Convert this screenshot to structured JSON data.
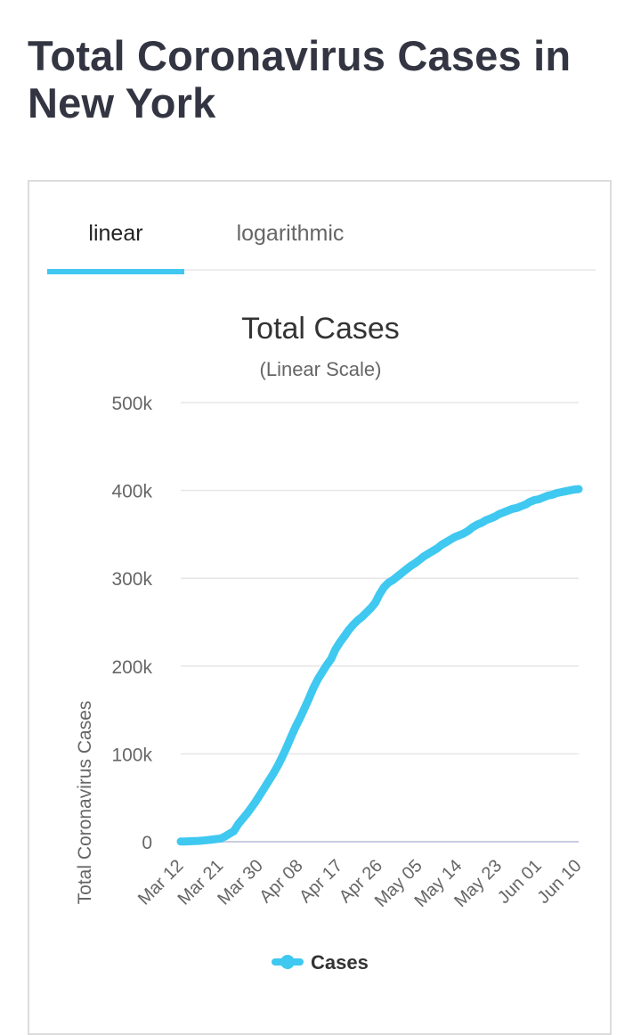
{
  "page": {
    "title": "Total Coronavirus Cases in New York"
  },
  "tabs": [
    {
      "label": "linear",
      "active": true
    },
    {
      "label": "logarithmic",
      "active": false
    }
  ],
  "colors": {
    "accent": "#3fc8f0",
    "title": "#333642",
    "grid": "#e6e6e6"
  },
  "chart_data": {
    "type": "line",
    "title": "Total Cases",
    "subtitle": "(Linear Scale)",
    "ylabel": "Total Coronavirus Cases",
    "xlabel": "",
    "ylim": [
      0,
      500000
    ],
    "y_ticks": [
      0,
      100000,
      200000,
      300000,
      400000,
      500000
    ],
    "y_tick_labels": [
      "0",
      "100k",
      "200k",
      "300k",
      "400k",
      "500k"
    ],
    "x_tick_labels": [
      "Mar 12",
      "Mar 21",
      "Mar 30",
      "Apr 08",
      "Apr 17",
      "Apr 26",
      "May 05",
      "May 14",
      "May 23",
      "Jun 01",
      "Jun 10"
    ],
    "legend": {
      "position": "bottom",
      "entries": [
        "Cases"
      ]
    },
    "grid": true,
    "series": [
      {
        "name": "Cases",
        "x": [
          "Mar 12",
          "Mar 13",
          "Mar 14",
          "Mar 15",
          "Mar 16",
          "Mar 17",
          "Mar 18",
          "Mar 19",
          "Mar 20",
          "Mar 21",
          "Mar 22",
          "Mar 23",
          "Mar 24",
          "Mar 25",
          "Mar 26",
          "Mar 27",
          "Mar 28",
          "Mar 29",
          "Mar 30",
          "Mar 31",
          "Apr 01",
          "Apr 02",
          "Apr 03",
          "Apr 04",
          "Apr 05",
          "Apr 06",
          "Apr 07",
          "Apr 08",
          "Apr 09",
          "Apr 10",
          "Apr 11",
          "Apr 12",
          "Apr 13",
          "Apr 14",
          "Apr 15",
          "Apr 16",
          "Apr 17",
          "Apr 18",
          "Apr 19",
          "Apr 20",
          "Apr 21",
          "Apr 22",
          "Apr 23",
          "Apr 24",
          "Apr 25",
          "Apr 26",
          "Apr 27",
          "Apr 28",
          "Apr 29",
          "Apr 30",
          "May 01",
          "May 02",
          "May 03",
          "May 04",
          "May 05",
          "May 06",
          "May 07",
          "May 08",
          "May 09",
          "May 10",
          "May 11",
          "May 12",
          "May 13",
          "May 14",
          "May 15",
          "May 16",
          "May 17",
          "May 18",
          "May 19",
          "May 20",
          "May 21",
          "May 22",
          "May 23",
          "May 24",
          "May 25",
          "May 26",
          "May 27",
          "May 28",
          "May 29",
          "May 30",
          "May 31",
          "Jun 01",
          "Jun 02",
          "Jun 03",
          "Jun 04",
          "Jun 05",
          "Jun 06",
          "Jun 07",
          "Jun 08",
          "Jun 09",
          "Jun 10"
        ],
        "values": [
          200,
          350,
          520,
          700,
          950,
          1300,
          1800,
          2400,
          3000,
          3600,
          6000,
          9000,
          12000,
          20000,
          26000,
          32000,
          39000,
          46000,
          54000,
          62000,
          70000,
          78000,
          87000,
          97000,
          108000,
          120000,
          131000,
          141000,
          152000,
          163000,
          175000,
          185000,
          193000,
          201000,
          208000,
          219000,
          227000,
          234000,
          241000,
          247000,
          252000,
          256000,
          261000,
          266000,
          272000,
          282000,
          290000,
          295000,
          298000,
          302000,
          306000,
          310000,
          314000,
          317000,
          321000,
          325000,
          328000,
          331000,
          334000,
          338000,
          341000,
          344000,
          347000,
          349000,
          351000,
          354000,
          358000,
          361000,
          363000,
          366000,
          368000,
          370000,
          373000,
          375000,
          377000,
          379000,
          380000,
          382000,
          384000,
          387000,
          389000,
          390000,
          392000,
          394000,
          395000,
          397000,
          398000,
          399000,
          400000,
          401000,
          401500
        ]
      }
    ]
  }
}
